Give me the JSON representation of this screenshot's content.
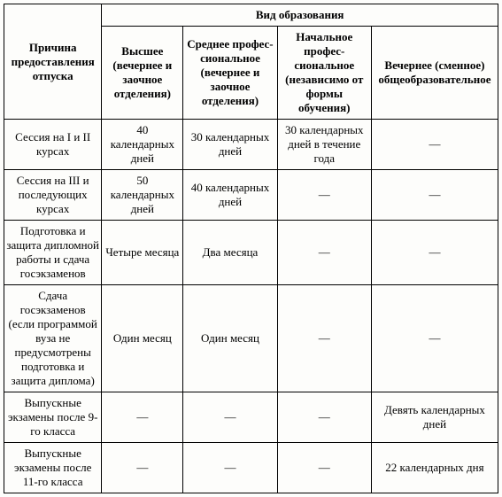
{
  "header": {
    "reason": "Причина предоставления отпуска",
    "education_type": "Вид образования",
    "cols": {
      "higher": "Высшее (вечернее и заочное отделения)",
      "secondary": "Среднее профес­сиональное (вечернее и заочное отделения)",
      "initial": "Начальное профес­сиональное (независимо от формы обучения)",
      "evening": "Вечернее (сменное) общеобразовательное"
    }
  },
  "rows": [
    {
      "reason": "Сессия на I и II курсах",
      "higher": "40 календарных дней",
      "secondary": "30 календарных дней",
      "initial": "30 календарных дней в течение года",
      "evening": "—"
    },
    {
      "reason": "Сессия на III и последующих курсах",
      "higher": "50 календарных дней",
      "secondary": "40 календарных дней",
      "initial": "—",
      "evening": "—"
    },
    {
      "reason": "Подготовка и защита дипломной работы и сдача госэкзаменов",
      "higher": "Четыре месяца",
      "secondary": "Два месяца",
      "initial": "—",
      "evening": "—"
    },
    {
      "reason": "Сдача госэкзаменов (если программой вуза не предусмотрены подготовка и защита диплома)",
      "higher": "Один месяц",
      "secondary": "Один месяц",
      "initial": "—",
      "evening": "—"
    },
    {
      "reason": "Выпускные экзамены после 9-го класса",
      "higher": "—",
      "secondary": "—",
      "initial": "—",
      "evening": "Девять календарных дней"
    },
    {
      "reason": "Выпускные экзамены после 11-го класса",
      "higher": "—",
      "secondary": "—",
      "initial": "—",
      "evening": "22 календарных дня"
    }
  ]
}
